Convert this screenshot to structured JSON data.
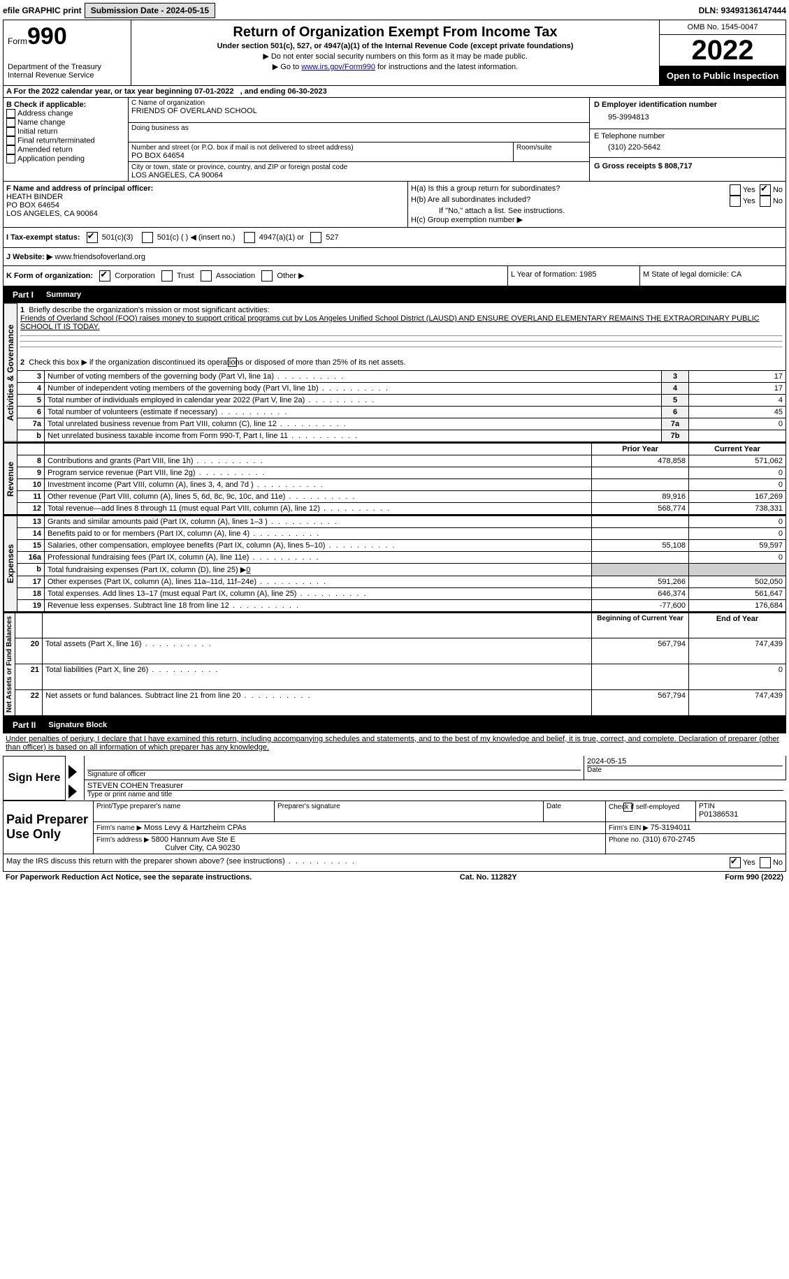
{
  "top": {
    "efile_label": "efile GRAPHIC print",
    "submission_label": "Submission Date - 2024-05-15",
    "dln_label": "DLN: 93493136147444"
  },
  "header": {
    "form_prefix": "Form",
    "form_no": "990",
    "dept": "Department of the Treasury",
    "irs": "Internal Revenue Service",
    "title": "Return of Organization Exempt From Income Tax",
    "subtitle": "Under section 501(c), 527, or 4947(a)(1) of the Internal Revenue Code (except private foundations)",
    "note1": "▶ Do not enter social security numbers on this form as it may be made public.",
    "note2_pre": "▶ Go to ",
    "note2_link": "www.irs.gov/Form990",
    "note2_post": " for instructions and the latest information.",
    "omb": "OMB No. 1545-0047",
    "year": "2022",
    "open": "Open to Public Inspection"
  },
  "period": {
    "text_a": "A For the 2022 calendar year, or tax year beginning 07-01-2022",
    "text_b": ", and ending 06-30-2023"
  },
  "blockB": {
    "label": "B Check if applicable:",
    "opts": [
      "Address change",
      "Name change",
      "Initial return",
      "Final return/terminated",
      "Amended return",
      "Application pending"
    ]
  },
  "blockC": {
    "name_label": "C Name of organization",
    "name": "FRIENDS OF OVERLAND SCHOOL",
    "dba_label": "Doing business as",
    "addr_label": "Number and street (or P.O. box if mail is not delivered to street address)",
    "room_label": "Room/suite",
    "addr": "PO BOX 64654",
    "city_label": "City or town, state or province, country, and ZIP or foreign postal code",
    "city": "LOS ANGELES, CA  90064"
  },
  "blockD": {
    "label": "D Employer identification number",
    "val": "95-3994813"
  },
  "blockE": {
    "label": "E Telephone number",
    "val": "(310) 220-5642"
  },
  "blockG": {
    "label": "G Gross receipts $ 808,717"
  },
  "blockF": {
    "label": "F Name and address of principal officer:",
    "name": "HEATH BINDER",
    "addr1": "PO BOX 64654",
    "addr2": "LOS ANGELES, CA  90064"
  },
  "blockH": {
    "a": "H(a)  Is this a group return for subordinates?",
    "b": "H(b)  Are all subordinates included?",
    "b_note": "If \"No,\" attach a list. See instructions.",
    "c": "H(c)  Group exemption number ▶",
    "yes": "Yes",
    "no": "No"
  },
  "blockI": {
    "label": "I   Tax-exempt status:",
    "o1": "501(c)(3)",
    "o2": "501(c) (  ) ◀ (insert no.)",
    "o3": "4947(a)(1) or",
    "o4": "527"
  },
  "blockJ": {
    "label": "J   Website: ▶",
    "val": "  www.friendsofoverland.org"
  },
  "blockK": {
    "label": "K Form of organization:",
    "o1": "Corporation",
    "o2": "Trust",
    "o3": "Association",
    "o4": "Other ▶"
  },
  "blockL": {
    "label": "L Year of formation: 1985"
  },
  "blockM": {
    "label": "M State of legal domicile: CA"
  },
  "part1": {
    "tag": "Part I",
    "title": "Summary",
    "l1_label": "Briefly describe the organization's mission or most significant activities:",
    "l1_text": "Friends of Overland School (FOO) raises money to support critical programs cut by Los Angeles Unified School District (LAUSD) AND ENSURE OVERLAND ELEMENTARY REMAINS THE EXTRAORDINARY PUBLIC SCHOOL IT IS TODAY.",
    "l2": "Check this box ▶        if the organization discontinued its operations or disposed of more than 25% of its net assets.",
    "rows_ag": [
      {
        "n": "3",
        "t": "Number of voting members of the governing body (Part VI, line 1a)",
        "ln": "3",
        "v": "17"
      },
      {
        "n": "4",
        "t": "Number of independent voting members of the governing body (Part VI, line 1b)",
        "ln": "4",
        "v": "17"
      },
      {
        "n": "5",
        "t": "Total number of individuals employed in calendar year 2022 (Part V, line 2a)",
        "ln": "5",
        "v": "4"
      },
      {
        "n": "6",
        "t": "Total number of volunteers (estimate if necessary)",
        "ln": "6",
        "v": "45"
      },
      {
        "n": "7a",
        "t": "Total unrelated business revenue from Part VIII, column (C), line 12",
        "ln": "7a",
        "v": "0"
      },
      {
        "n": "b",
        "t": "Net unrelated business taxable income from Form 990-T, Part I, line 11",
        "ln": "7b",
        "v": ""
      }
    ],
    "hdr_prior": "Prior Year",
    "hdr_current": "Current Year",
    "rows_rev": [
      {
        "n": "8",
        "t": "Contributions and grants (Part VIII, line 1h)",
        "p": "478,858",
        "c": "571,062"
      },
      {
        "n": "9",
        "t": "Program service revenue (Part VIII, line 2g)",
        "p": "",
        "c": "0"
      },
      {
        "n": "10",
        "t": "Investment income (Part VIII, column (A), lines 3, 4, and 7d )",
        "p": "",
        "c": "0"
      },
      {
        "n": "11",
        "t": "Other revenue (Part VIII, column (A), lines 5, 6d, 8c, 9c, 10c, and 11e)",
        "p": "89,916",
        "c": "167,269"
      },
      {
        "n": "12",
        "t": "Total revenue—add lines 8 through 11 (must equal Part VIII, column (A), line 12)",
        "p": "568,774",
        "c": "738,331"
      }
    ],
    "rows_exp": [
      {
        "n": "13",
        "t": "Grants and similar amounts paid (Part IX, column (A), lines 1–3 )",
        "p": "",
        "c": "0"
      },
      {
        "n": "14",
        "t": "Benefits paid to or for members (Part IX, column (A), line 4)",
        "p": "",
        "c": "0"
      },
      {
        "n": "15",
        "t": "Salaries, other compensation, employee benefits (Part IX, column (A), lines 5–10)",
        "p": "55,108",
        "c": "59,597"
      },
      {
        "n": "16a",
        "t": "Professional fundraising fees (Part IX, column (A), line 11e)",
        "p": "",
        "c": "0"
      }
    ],
    "row_16b": {
      "n": "b",
      "t": "Total fundraising expenses (Part IX, column (D), line 25) ▶",
      "v": "0"
    },
    "rows_exp2": [
      {
        "n": "17",
        "t": "Other expenses (Part IX, column (A), lines 11a–11d, 11f–24e)",
        "p": "591,266",
        "c": "502,050"
      },
      {
        "n": "18",
        "t": "Total expenses. Add lines 13–17 (must equal Part IX, column (A), line 25)",
        "p": "646,374",
        "c": "561,647"
      },
      {
        "n": "19",
        "t": "Revenue less expenses. Subtract line 18 from line 12",
        "p": "-77,600",
        "c": "176,684"
      }
    ],
    "hdr_begin": "Beginning of Current Year",
    "hdr_end": "End of Year",
    "rows_na": [
      {
        "n": "20",
        "t": "Total assets (Part X, line 16)",
        "p": "567,794",
        "c": "747,439"
      },
      {
        "n": "21",
        "t": "Total liabilities (Part X, line 26)",
        "p": "",
        "c": "0"
      },
      {
        "n": "22",
        "t": "Net assets or fund balances. Subtract line 21 from line 20",
        "p": "567,794",
        "c": "747,439"
      }
    ],
    "side_ag": "Activities & Governance",
    "side_rev": "Revenue",
    "side_exp": "Expenses",
    "side_na": "Net Assets or Fund Balances"
  },
  "part2": {
    "tag": "Part II",
    "title": "Signature Block",
    "decl": "Under penalties of perjury, I declare that I have examined this return, including accompanying schedules and statements, and to the best of my knowledge and belief, it is true, correct, and complete. Declaration of preparer (other than officer) is based on all information of which preparer has any knowledge.",
    "sign_here": "Sign Here",
    "sig_officer": "Signature of officer",
    "date_val": "2024-05-15",
    "date_label": "Date",
    "name_val": "STEVEN COHEN  Treasurer",
    "name_label": "Type or print name and title",
    "paid": "Paid Preparer Use Only",
    "p_name_label": "Print/Type preparer's name",
    "p_sig_label": "Preparer's signature",
    "p_date_label": "Date",
    "p_check": "Check          if self-employed",
    "ptin_label": "PTIN",
    "ptin": "P01386531",
    "firm_name_label": "Firm's name    ▶ ",
    "firm_name": "Moss Levy & Hartzheim CPAs",
    "firm_ein_label": "Firm's EIN ▶ ",
    "firm_ein": "75-3194011",
    "firm_addr_label": "Firm's address ▶ ",
    "firm_addr1": "5800 Hannum Ave Ste E",
    "firm_addr2": "Culver City, CA  90230",
    "phone_label": "Phone no. ",
    "phone": "(310) 670-2745",
    "discuss": "May the IRS discuss this return with the preparer shown above? (see instructions)",
    "yes": "Yes",
    "no": "No"
  },
  "footer": {
    "left": "For Paperwork Reduction Act Notice, see the separate instructions.",
    "mid": "Cat. No. 11282Y",
    "right": "Form 990 (2022)"
  }
}
